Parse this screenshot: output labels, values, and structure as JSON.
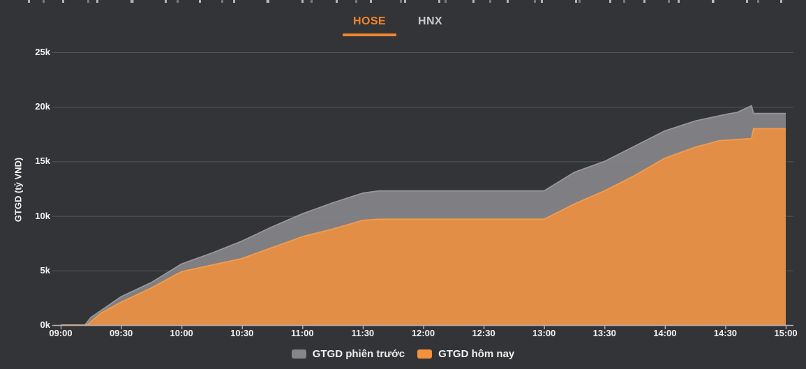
{
  "page": {
    "background": "#333437"
  },
  "tabs": [
    {
      "label": "HOSE",
      "active": true
    },
    {
      "label": "HNX",
      "active": false
    }
  ],
  "colors": {
    "tab_active": "#f0862d",
    "tab_inactive": "#cbcbcd",
    "axis_line": "#b3b3b6",
    "gridline": "#56575a",
    "tick_text": "#f2f2f2",
    "legend_text": "#f0f0f0",
    "series_prev": "#85858a",
    "series_today": "#f3913d"
  },
  "chart_data": {
    "type": "area",
    "title": "",
    "ylabel": "GTGD (tỷ VND)",
    "ylim": [
      0,
      25
    ],
    "y_unit": "k (tỷ VND)",
    "y_tick_values": [
      0,
      5,
      10,
      15,
      20,
      25
    ],
    "y_tick_labels": [
      "0k",
      "5k",
      "10k",
      "15k",
      "20k",
      "25k"
    ],
    "x_range_minutes": [
      0,
      360
    ],
    "x_tick_minutes": [
      0,
      30,
      60,
      90,
      120,
      150,
      180,
      210,
      240,
      270,
      300,
      330,
      360
    ],
    "x_tick_labels": [
      "09:00",
      "09:30",
      "10:00",
      "10:30",
      "11:00",
      "11:30",
      "12:00",
      "12:30",
      "13:00",
      "13:30",
      "14:00",
      "14:30",
      "15:00"
    ],
    "grid": "horizontal",
    "legend_position": "bottom",
    "series": [
      {
        "name": "GTGD phiên trước",
        "color": "#85858a",
        "fill_opacity": 0.92,
        "stroke": "#97979b",
        "points_min_value_k": [
          [
            0,
            0
          ],
          [
            12,
            0
          ],
          [
            15,
            0.7
          ],
          [
            30,
            2.6
          ],
          [
            45,
            3.9
          ],
          [
            60,
            5.6
          ],
          [
            75,
            6.6
          ],
          [
            90,
            7.7
          ],
          [
            105,
            9.0
          ],
          [
            120,
            10.2
          ],
          [
            135,
            11.2
          ],
          [
            150,
            12.1
          ],
          [
            158,
            12.3
          ],
          [
            240,
            12.3
          ],
          [
            255,
            14.0
          ],
          [
            270,
            15.0
          ],
          [
            285,
            16.4
          ],
          [
            300,
            17.8
          ],
          [
            315,
            18.7
          ],
          [
            330,
            19.3
          ],
          [
            336,
            19.5
          ],
          [
            343,
            20.1
          ],
          [
            344,
            19.4
          ],
          [
            360,
            19.4
          ]
        ]
      },
      {
        "name": "GTGD hôm nay",
        "color": "#f3913d",
        "fill_opacity": 0.85,
        "stroke": "#f59b4a",
        "points_min_value_k": [
          [
            0,
            0
          ],
          [
            13,
            0
          ],
          [
            20,
            1.1
          ],
          [
            30,
            2.1
          ],
          [
            45,
            3.4
          ],
          [
            60,
            4.9
          ],
          [
            75,
            5.5
          ],
          [
            90,
            6.1
          ],
          [
            105,
            7.1
          ],
          [
            120,
            8.1
          ],
          [
            135,
            8.8
          ],
          [
            150,
            9.6
          ],
          [
            158,
            9.7
          ],
          [
            240,
            9.7
          ],
          [
            255,
            11.1
          ],
          [
            270,
            12.3
          ],
          [
            285,
            13.7
          ],
          [
            300,
            15.3
          ],
          [
            315,
            16.3
          ],
          [
            327,
            16.9
          ],
          [
            343,
            17.1
          ],
          [
            344,
            18.0
          ],
          [
            360,
            18.0
          ]
        ]
      }
    ]
  },
  "legend": {
    "items": [
      {
        "label": "GTGD phiên trước",
        "color": "#85858a"
      },
      {
        "label": "GTGD hôm nay",
        "color": "#f3913d"
      }
    ]
  }
}
